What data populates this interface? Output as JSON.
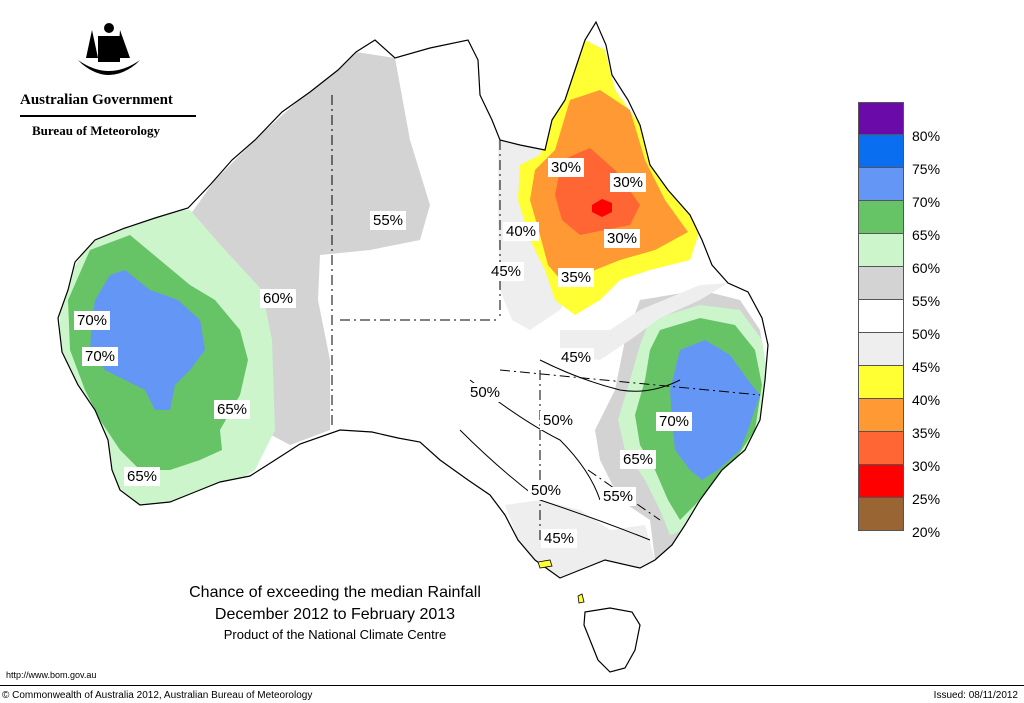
{
  "header": {
    "org_name": "Australian Government",
    "bureau_name": "Bureau of Meteorology"
  },
  "title": {
    "line1": "Chance of exceeding the median Rainfall",
    "line2": "December 2012 to February 2013",
    "line3": "Product of the National Climate Centre"
  },
  "legend": [
    {
      "label": "80%",
      "color": "#6a0aa8"
    },
    {
      "label": "75%",
      "color": "#0a6ef0"
    },
    {
      "label": "70%",
      "color": "#6496f5"
    },
    {
      "label": "65%",
      "color": "#66c466"
    },
    {
      "label": "60%",
      "color": "#ccf5cc"
    },
    {
      "label": "55%",
      "color": "#d3d3d3"
    },
    {
      "label": "50%",
      "color": "#ffffff"
    },
    {
      "label": "45%",
      "color": "#eeeeee"
    },
    {
      "label": "40%",
      "color": "#ffff33"
    },
    {
      "label": "35%",
      "color": "#ff9933"
    },
    {
      "label": "30%",
      "color": "#ff6633"
    },
    {
      "label": "25%",
      "color": "#ff0000"
    },
    {
      "label": "20%",
      "color": "#996633"
    }
  ],
  "contour_labels": {
    "wa_70_north": "70%",
    "wa_70_south": "70%",
    "wa_60": "60%",
    "wa_65_east": "65%",
    "wa_65_south": "65%",
    "nt_55": "55%",
    "qld_30_west": "30%",
    "qld_30_east": "30%",
    "qld_30_south": "30%",
    "qld_40": "40%",
    "qld_45": "45%",
    "qld_35": "35%",
    "mid_45": "45%",
    "central_50": "50%",
    "sa_50": "50%",
    "nsw_70": "70%",
    "nsw_65": "65%",
    "sa_50_south": "50%",
    "nsw_55": "55%",
    "vic_45": "45%"
  },
  "footer": {
    "url": "http://www.bom.gov.au",
    "copyright": "© Commonwealth of Australia 2012, Australian Bureau of Meteorology",
    "issued": "Issued: 08/11/2012"
  }
}
